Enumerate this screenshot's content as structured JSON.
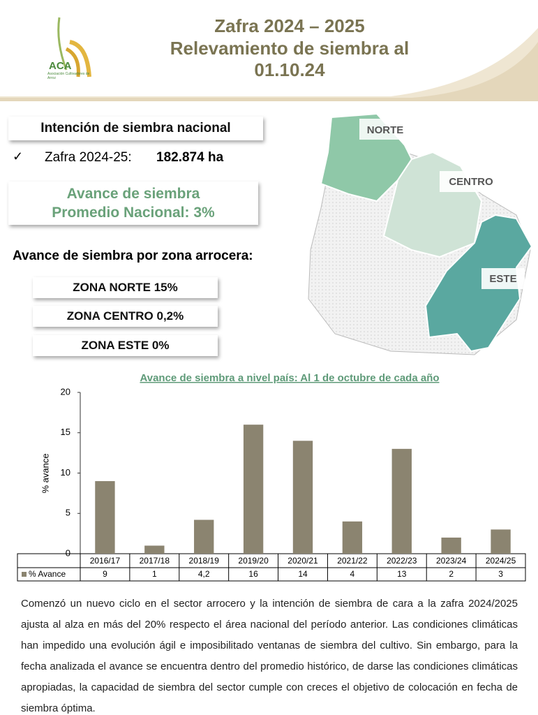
{
  "header": {
    "logo": "ACA",
    "logo_subtitle": "Asociación Cultivadores de Arroz",
    "title_lines": [
      "Zafra 2024 – 2025",
      "Relevamiento de siembra al",
      "01.10.24"
    ]
  },
  "intention": {
    "heading": "Intención de siembra nacional",
    "check": "✓",
    "label": "Zafra 2024-25:",
    "value": "182.874 ha"
  },
  "average": {
    "line1": "Avance de siembra",
    "line2": "Promedio Nacional:  3%"
  },
  "zones": {
    "heading": "Avance de siembra por zona arrocera:",
    "items": [
      "ZONA NORTE 15%",
      "ZONA CENTRO 0,2%",
      "ZONA ESTE  0%"
    ]
  },
  "map": {
    "labels": [
      "NORTE",
      "CENTRO",
      "ESTE"
    ]
  },
  "chart_data": {
    "type": "bar",
    "title": "Avance de siembra a nivel país: Al 1 de octubre de cada año",
    "y_label": "% avance",
    "categories": [
      "2016/17",
      "2017/18",
      "2018/19",
      "2019/20",
      "2020/21",
      "2021/22",
      "2022/23",
      "2023/24",
      "2024/25"
    ],
    "series": [
      {
        "name": "% Avance",
        "color": "#8b8470",
        "values": [
          9,
          1,
          4.2,
          16,
          14,
          4,
          13,
          2,
          3
        ],
        "value_labels": [
          "9",
          "1",
          "4,2",
          "16",
          "14",
          "4",
          "13",
          "2",
          "3"
        ]
      }
    ],
    "ylim": [
      0,
      20
    ],
    "yticks": [
      0,
      5,
      10,
      15,
      20
    ]
  },
  "paragraph": "Comenzó un nuevo ciclo en el sector arrocero y la intención de siembra de cara a la zafra 2024/2025 ajusta al alza en más del 20% respecto el área nacional del período anterior. Las condiciones climáticas han impedido una evolución ágil e imposibilitado ventanas de siembra del cultivo. Sin embargo, para la fecha analizada el avance se encuentra dentro del promedio histórico, de darse las condiciones climáticas apropiadas, la capacidad de siembra del sector cumple con creces el objetivo de colocación en fecha de siembra óptima."
}
